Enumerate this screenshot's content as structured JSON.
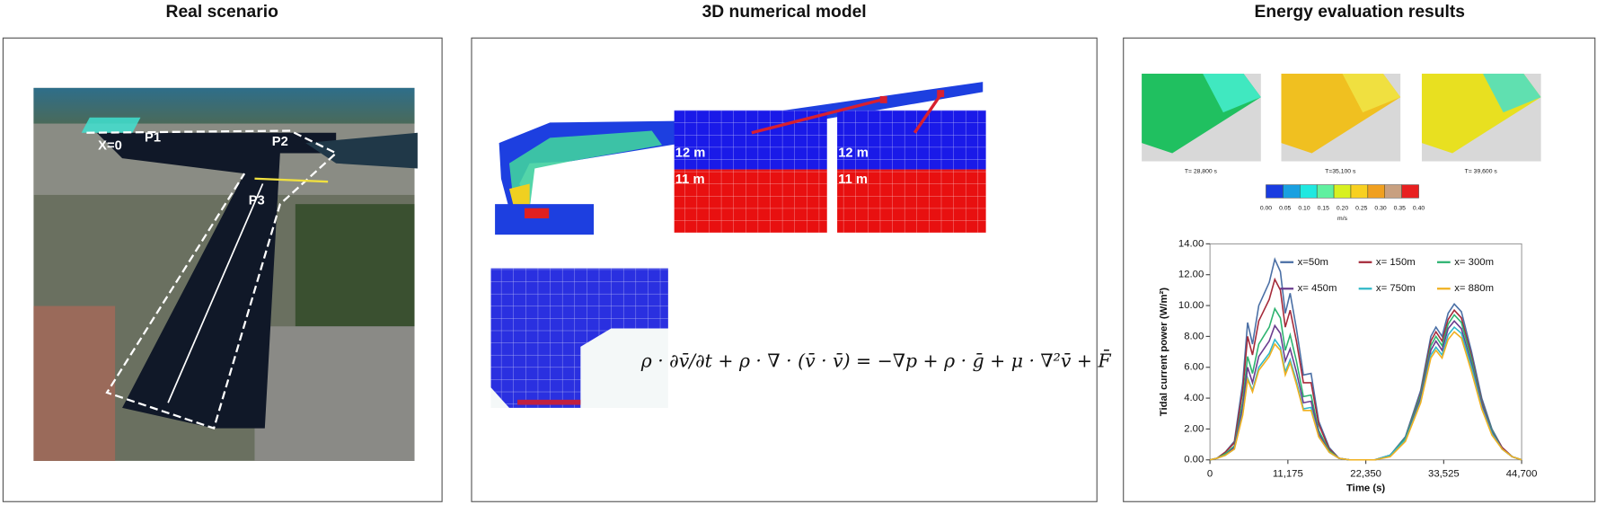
{
  "panels": [
    {
      "title": "Real scenario",
      "labels": [
        "X=0",
        "P1",
        "P2",
        "P3"
      ]
    },
    {
      "title": "3D numerical model",
      "labels": [
        "12 m",
        "11 m",
        "12 m",
        "11 m"
      ],
      "equation": "ρ · ∂v̄/∂t + ρ · ∇ · (v̄ · v̄) = −∇p + ρ · ḡ + μ · ∇²v̄ + F̄"
    },
    {
      "title": "Energy evaluation results",
      "snapshots": [
        "T= 28,800 s",
        "T=35,100 s",
        "T= 39,600 s"
      ],
      "colorbar": {
        "labels": [
          "0.00",
          "0.05",
          "0.10",
          "0.15",
          "0.20",
          "0.25",
          "0.30",
          "0.35",
          "0.40"
        ],
        "colors": [
          "#1a3ce0",
          "#1aa0e0",
          "#20e8e0",
          "#60f0a0",
          "#d8f020",
          "#f8d020",
          "#f0a020",
          "#c8a080",
          "#e82020"
        ],
        "unit": "m/s"
      }
    }
  ],
  "chart_data": {
    "type": "line",
    "x_label": "Time (s)",
    "y_label": "Tidal current power (W/m²)",
    "x": [
      0,
      1000,
      2200,
      3500,
      4700,
      5400,
      6100,
      7000,
      8500,
      9300,
      10100,
      10800,
      11500,
      12400,
      13400,
      14500,
      15600,
      17100,
      18500,
      20000,
      22350,
      23650,
      25840,
      28030,
      30220,
      31680,
      32410,
      33290,
      34160,
      35040,
      36060,
      37520,
      38980,
      40440,
      41900,
      43360,
      44700
    ],
    "xlim": [
      0,
      44700
    ],
    "xticks": [
      0,
      {
        "value": 11175,
        "label": "11,175"
      },
      {
        "value": 22350,
        "label": "22,350"
      },
      {
        "value": 33525,
        "label": "33,525"
      },
      {
        "value": 44700,
        "label": "44,700"
      }
    ],
    "ylim": [
      0,
      14
    ],
    "yticks": [
      {
        "value": 0,
        "label": "0.00"
      },
      {
        "value": 2,
        "label": "2.00"
      },
      {
        "value": 4,
        "label": "4.00"
      },
      {
        "value": 6,
        "label": "6.00"
      },
      {
        "value": 8,
        "label": "8.00"
      },
      {
        "value": 10,
        "label": "10.00"
      },
      {
        "value": 12,
        "label": "12.00"
      },
      {
        "value": 14,
        "label": "14.00"
      }
    ],
    "series": [
      {
        "name": "x=50m",
        "color": "#4a6fa5",
        "values": [
          0,
          0.1,
          0.5,
          1.2,
          5.0,
          8.9,
          7.5,
          10.0,
          11.5,
          13.0,
          12.2,
          9.5,
          10.8,
          8.5,
          5.5,
          5.6,
          2.5,
          0.8,
          0.1,
          0,
          0,
          0,
          0.3,
          1.5,
          4.5,
          8.0,
          8.6,
          8.0,
          9.5,
          10.1,
          9.6,
          7.0,
          4.0,
          2.0,
          0.8,
          0.2,
          0
        ]
      },
      {
        "name": "x= 150m",
        "color": "#a52a3a",
        "values": [
          0,
          0.1,
          0.5,
          1.1,
          4.5,
          8.0,
          6.8,
          9.0,
          10.4,
          11.7,
          11.0,
          8.6,
          9.7,
          7.7,
          5.0,
          5.0,
          2.3,
          0.7,
          0.1,
          0,
          0,
          0,
          0.3,
          1.4,
          4.3,
          7.7,
          8.3,
          7.7,
          9.1,
          9.7,
          9.2,
          6.7,
          3.8,
          1.9,
          0.8,
          0.2,
          0
        ]
      },
      {
        "name": "x= 300m",
        "color": "#2db370",
        "values": [
          0,
          0.1,
          0.4,
          0.9,
          3.8,
          6.7,
          5.6,
          7.5,
          8.6,
          9.8,
          9.2,
          7.1,
          8.1,
          6.4,
          4.1,
          4.2,
          1.9,
          0.6,
          0.1,
          0,
          0,
          0,
          0.3,
          1.4,
          4.2,
          7.4,
          8.0,
          7.4,
          8.8,
          9.4,
          8.9,
          6.5,
          3.7,
          1.9,
          0.7,
          0.2,
          0
        ]
      },
      {
        "name": "x= 450m",
        "color": "#6a3d8f",
        "values": [
          0,
          0.1,
          0.3,
          0.8,
          3.4,
          6.0,
          5.0,
          6.7,
          7.7,
          8.7,
          8.2,
          6.4,
          7.2,
          5.7,
          3.7,
          3.8,
          1.7,
          0.5,
          0.1,
          0,
          0,
          0,
          0.3,
          1.3,
          4.0,
          7.1,
          7.7,
          7.1,
          8.5,
          9.0,
          8.5,
          6.2,
          3.6,
          1.8,
          0.7,
          0.2,
          0
        ]
      },
      {
        "name": "x= 750m",
        "color": "#30b8c8",
        "values": [
          0,
          0.1,
          0.3,
          0.7,
          3.0,
          5.3,
          4.5,
          6.0,
          6.9,
          7.8,
          7.3,
          5.7,
          6.5,
          5.1,
          3.3,
          3.4,
          1.5,
          0.5,
          0.1,
          0,
          0,
          0,
          0.3,
          1.3,
          3.8,
          6.8,
          7.3,
          6.8,
          8.1,
          8.6,
          8.2,
          6.0,
          3.4,
          1.7,
          0.7,
          0.2,
          0
        ]
      },
      {
        "name": "x= 880m",
        "color": "#f0b020",
        "values": [
          0,
          0.1,
          0.3,
          0.7,
          2.9,
          5.2,
          4.4,
          5.8,
          6.7,
          7.5,
          7.1,
          5.5,
          6.3,
          4.9,
          3.2,
          3.2,
          1.5,
          0.5,
          0.1,
          0,
          0,
          0,
          0.2,
          1.2,
          3.7,
          6.6,
          7.1,
          6.6,
          7.8,
          8.3,
          7.9,
          5.7,
          3.3,
          1.6,
          0.7,
          0.2,
          0
        ]
      }
    ]
  }
}
